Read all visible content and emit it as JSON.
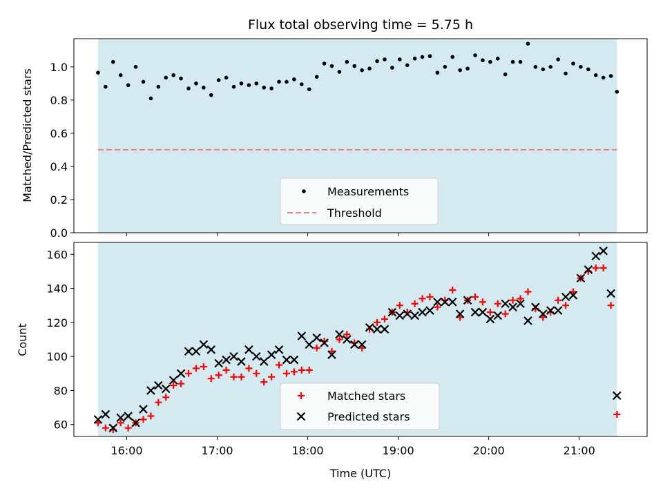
{
  "chart_data": [
    {
      "type": "scatter",
      "title": "Flux total observing time = 5.75 h",
      "ylabel": "Matched/Predicted stars",
      "xlabel": "",
      "ylim": [
        0,
        1.17
      ],
      "yticks": [
        "0.0",
        "0.2",
        "0.4",
        "0.6",
        "0.8",
        "1.0"
      ],
      "shaded_span": [
        "15:41",
        "21:25"
      ],
      "shade_color": "#d4eaf0",
      "threshold": {
        "name": "Threshold",
        "value": 0.5,
        "color": "#f07f7f",
        "style": "dashed"
      },
      "legend": {
        "placement": "lower-center",
        "entries": [
          "Measurements",
          "Threshold"
        ]
      },
      "series": [
        {
          "name": "Measurements",
          "color": "#000000",
          "marker": "dot",
          "x": [
            "15:41",
            "15:46",
            "15:51",
            "15:56",
            "16:01",
            "16:06",
            "16:11",
            "16:16",
            "16:21",
            "16:26",
            "16:31",
            "16:36",
            "16:41",
            "16:46",
            "16:51",
            "16:56",
            "17:01",
            "17:06",
            "17:11",
            "17:16",
            "17:21",
            "17:26",
            "17:31",
            "17:36",
            "17:41",
            "17:46",
            "17:51",
            "17:56",
            "18:01",
            "18:06",
            "18:11",
            "18:16",
            "18:21",
            "18:26",
            "18:31",
            "18:36",
            "18:41",
            "18:46",
            "18:51",
            "18:56",
            "19:01",
            "19:06",
            "19:11",
            "19:16",
            "19:21",
            "19:26",
            "19:31",
            "19:36",
            "19:41",
            "19:46",
            "19:51",
            "19:56",
            "20:01",
            "20:06",
            "20:11",
            "20:16",
            "20:21",
            "20:26",
            "20:31",
            "20:36",
            "20:41",
            "20:46",
            "20:51",
            "20:56",
            "21:01",
            "21:06",
            "21:11",
            "21:16",
            "21:21",
            "21:25"
          ],
          "y": [
            0.965,
            0.88,
            1.03,
            0.95,
            0.89,
            1.0,
            0.91,
            0.81,
            0.88,
            0.935,
            0.95,
            0.93,
            0.87,
            0.9,
            0.875,
            0.83,
            0.92,
            0.935,
            0.88,
            0.9,
            0.89,
            0.9,
            0.875,
            0.87,
            0.91,
            0.91,
            0.925,
            0.895,
            0.865,
            0.94,
            1.02,
            1.005,
            0.97,
            1.03,
            1.005,
            0.98,
            0.99,
            1.035,
            1.045,
            0.995,
            1.045,
            1.01,
            1.05,
            1.06,
            1.065,
            0.965,
            1.0,
            1.06,
            0.98,
            0.99,
            1.07,
            1.04,
            1.03,
            1.05,
            0.955,
            1.03,
            1.03,
            1.14,
            1.0,
            0.985,
            1.0,
            1.045,
            0.96,
            1.02,
            1.0,
            0.985,
            0.95,
            0.935,
            0.945,
            0.85
          ]
        }
      ]
    },
    {
      "type": "scatter",
      "title": "",
      "xlabel": "Time (UTC)",
      "ylabel": "Count",
      "ylim": [
        53,
        167
      ],
      "yticks": [
        "60",
        "80",
        "100",
        "120",
        "140",
        "160"
      ],
      "xticks": [
        "16:00",
        "17:00",
        "18:00",
        "19:00",
        "20:00",
        "21:00"
      ],
      "xlim": [
        "15:25",
        "21:45"
      ],
      "shaded_span": [
        "15:41",
        "21:25"
      ],
      "legend": {
        "placement": "lower-center",
        "entries": [
          "Matched stars",
          "Predicted stars"
        ]
      },
      "series": [
        {
          "name": "Matched stars",
          "color": "#ff0000",
          "marker": "plus",
          "x": [
            "15:41",
            "15:46",
            "15:51",
            "15:56",
            "16:01",
            "16:06",
            "16:11",
            "16:16",
            "16:21",
            "16:26",
            "16:31",
            "16:36",
            "16:41",
            "16:46",
            "16:51",
            "16:56",
            "17:01",
            "17:06",
            "17:11",
            "17:16",
            "17:21",
            "17:26",
            "17:31",
            "17:36",
            "17:41",
            "17:46",
            "17:51",
            "17:56",
            "18:01",
            "18:06",
            "18:11",
            "18:16",
            "18:21",
            "18:26",
            "18:31",
            "18:36",
            "18:41",
            "18:46",
            "18:51",
            "18:56",
            "19:01",
            "19:06",
            "19:11",
            "19:16",
            "19:21",
            "19:26",
            "19:31",
            "19:36",
            "19:41",
            "19:46",
            "19:51",
            "19:56",
            "20:01",
            "20:06",
            "20:11",
            "20:16",
            "20:21",
            "20:26",
            "20:31",
            "20:36",
            "20:41",
            "20:46",
            "20:51",
            "20:56",
            "21:01",
            "21:06",
            "21:11",
            "21:16",
            "21:21",
            "21:25"
          ],
          "y": [
            61,
            58,
            57,
            61,
            58,
            61,
            63,
            65,
            73,
            76,
            83,
            84,
            90,
            93,
            94,
            87,
            89,
            92,
            88,
            88,
            93,
            90,
            85,
            88,
            95,
            90,
            91,
            92,
            92,
            105,
            109,
            103,
            110,
            113,
            108,
            105,
            116,
            120,
            122,
            126,
            130,
            126,
            131,
            134,
            135,
            129,
            133,
            139,
            123,
            133,
            135,
            132,
            126,
            131,
            125,
            133,
            134,
            138,
            128,
            123,
            126,
            133,
            130,
            138,
            146,
            150,
            152,
            152,
            130,
            66
          ]
        },
        {
          "name": "Predicted stars",
          "color": "#000000",
          "marker": "x",
          "x": [
            "15:41",
            "15:46",
            "15:51",
            "15:56",
            "16:01",
            "16:06",
            "16:11",
            "16:16",
            "16:21",
            "16:26",
            "16:31",
            "16:36",
            "16:41",
            "16:46",
            "16:51",
            "16:56",
            "17:01",
            "17:06",
            "17:11",
            "17:16",
            "17:21",
            "17:26",
            "17:31",
            "17:36",
            "17:41",
            "17:46",
            "17:51",
            "17:56",
            "18:01",
            "18:06",
            "18:11",
            "18:16",
            "18:21",
            "18:26",
            "18:31",
            "18:36",
            "18:41",
            "18:46",
            "18:51",
            "18:56",
            "19:01",
            "19:06",
            "19:11",
            "19:16",
            "19:21",
            "19:26",
            "19:31",
            "19:36",
            "19:41",
            "19:46",
            "19:51",
            "19:56",
            "20:01",
            "20:06",
            "20:11",
            "20:16",
            "20:21",
            "20:26",
            "20:31",
            "20:36",
            "20:41",
            "20:46",
            "20:51",
            "20:56",
            "21:01",
            "21:06",
            "21:11",
            "21:16",
            "21:21",
            "21:25"
          ],
          "y": [
            63,
            66,
            58,
            64,
            65,
            61,
            69,
            80,
            83,
            81,
            86,
            90,
            103,
            103,
            107,
            104,
            96,
            98,
            100,
            97,
            104,
            100,
            97,
            101,
            104,
            98,
            98,
            112,
            107,
            111,
            108,
            101,
            113,
            110,
            107,
            107,
            117,
            116,
            116,
            126,
            124,
            125,
            124,
            126,
            127,
            132,
            132,
            132,
            125,
            133,
            126,
            126,
            122,
            124,
            131,
            129,
            131,
            121,
            129,
            125,
            127,
            127,
            135,
            136,
            146,
            151,
            159,
            162,
            137,
            77
          ]
        }
      ]
    }
  ]
}
